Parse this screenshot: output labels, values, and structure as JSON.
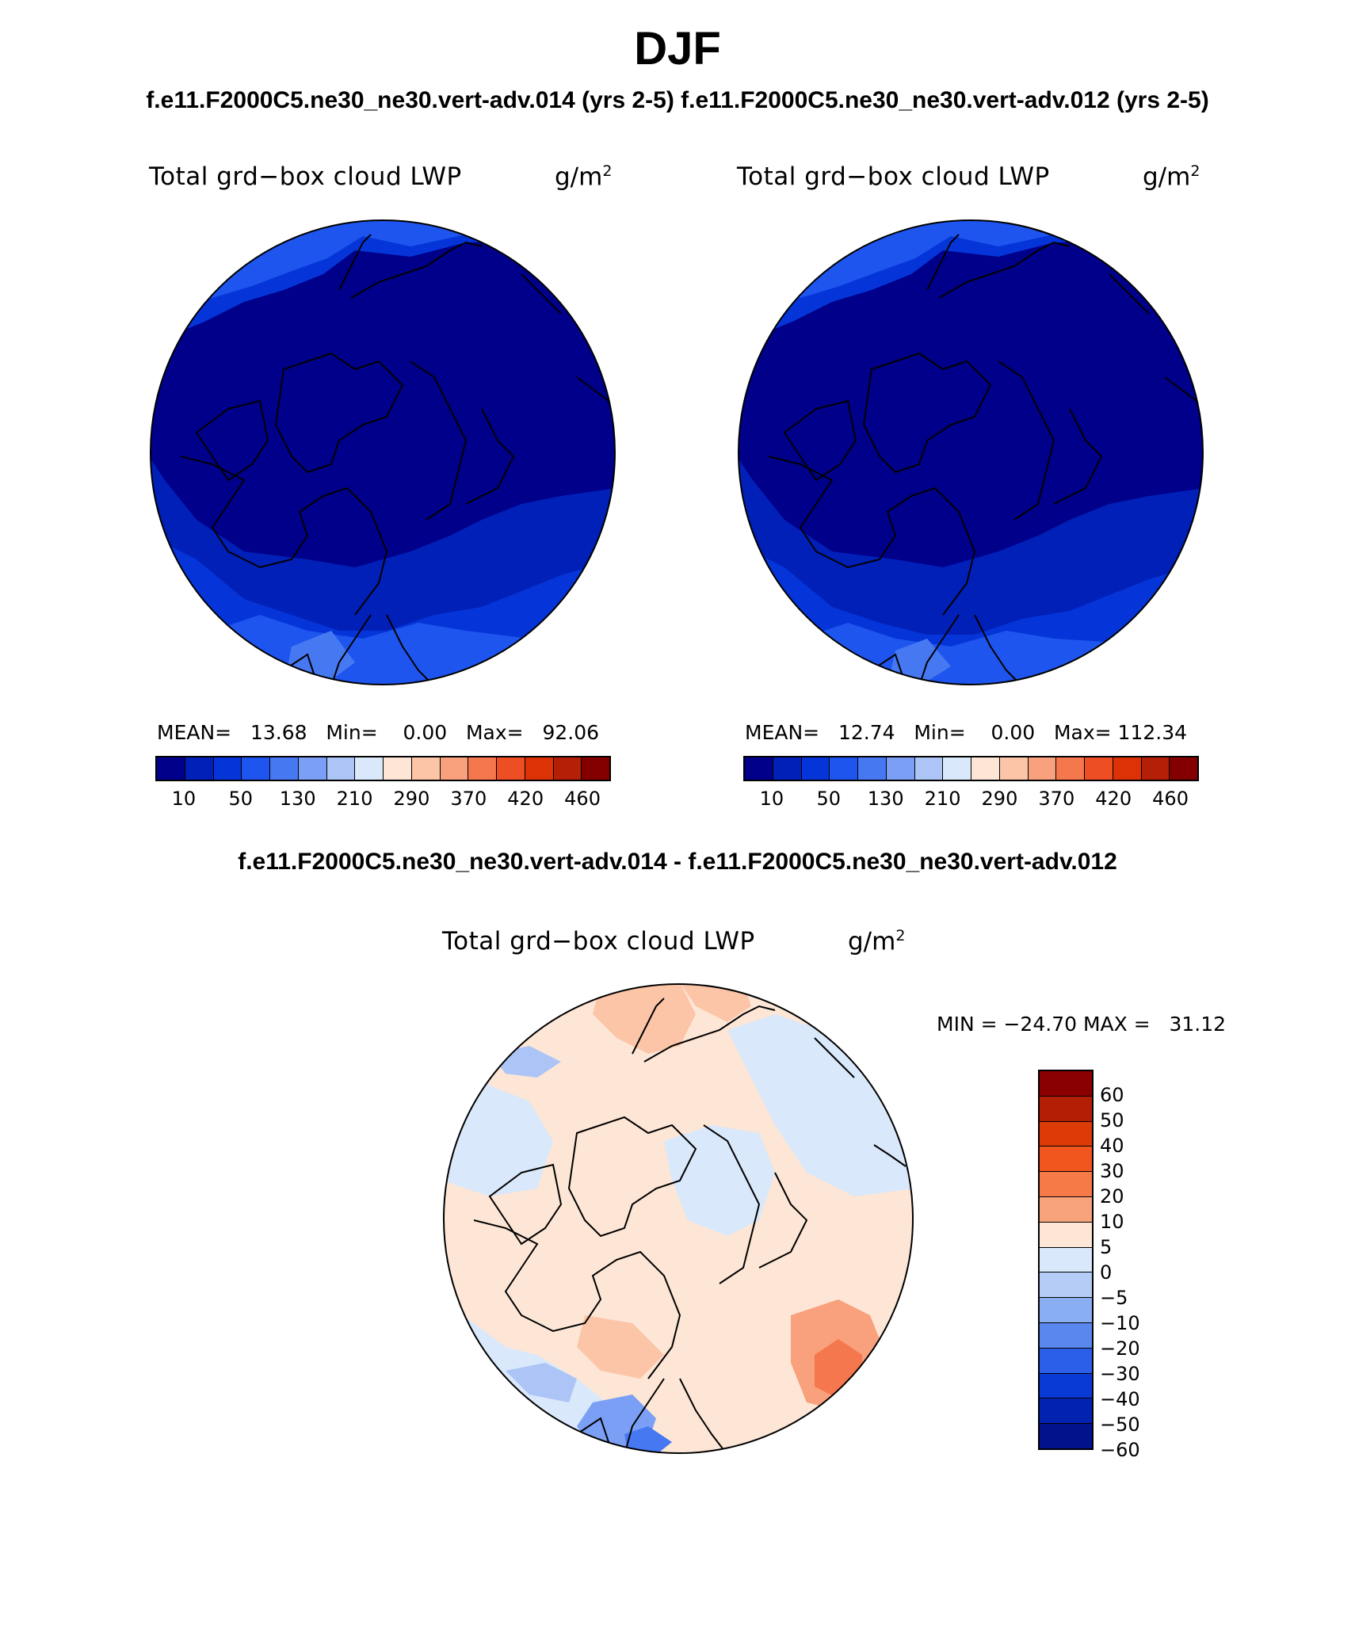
{
  "main_title": "DJF",
  "top_subtitle": "f.e11.F2000C5.ne30_ne30.vert-adv.014 (yrs 2-5) f.e11.F2000C5.ne30_ne30.vert-adv.012 (yrs 2-5)",
  "panel_left": {
    "title": "Total grd−box cloud LWP",
    "units_base": "g/m",
    "units_exp": "2",
    "stats": "MEAN=   13.68   Min=    0.00   Max=   92.06"
  },
  "panel_right": {
    "title": "Total grd−box cloud LWP",
    "units_base": "g/m",
    "units_exp": "2",
    "stats": "MEAN=   12.74   Min=    0.00   Max= 112.34"
  },
  "abs_colorbar": {
    "colors": [
      "#00008b",
      "#0020b8",
      "#0535d8",
      "#1e55ee",
      "#4678f2",
      "#7b9ff5",
      "#acc4f6",
      "#d9e8fa",
      "#fde6d6",
      "#fcc5a8",
      "#f9a07c",
      "#f4774d",
      "#ee4e24",
      "#dc3206",
      "#b42007",
      "#840000"
    ],
    "tick_labels": [
      "10",
      "50",
      "130",
      "210",
      "290",
      "370",
      "420",
      "460"
    ]
  },
  "diff_title": "f.e11.F2000C5.ne30_ne30.vert-adv.014 - f.e11.F2000C5.ne30_ne30.vert-adv.012",
  "panel_diff": {
    "title": "Total grd−box cloud LWP",
    "units_base": "g/m",
    "units_exp": "2",
    "stats": "MIN = −24.70 MAX =   31.12"
  },
  "diff_colorbar": {
    "colors_top_to_bottom": [
      "#8a0000",
      "#b31f05",
      "#dc3a06",
      "#f2561f",
      "#f57a47",
      "#f8a37c",
      "#fde6d6",
      "#d9e8fa",
      "#b5cdf6",
      "#8aaef2",
      "#5a87ee",
      "#2b5ee9",
      "#0a3ad6",
      "#0223b0",
      "#01128c"
    ],
    "tick_labels": [
      "60",
      "50",
      "40",
      "30",
      "20",
      "10",
      "5",
      "0",
      "−5",
      "−10",
      "−20",
      "−30",
      "−40",
      "−50",
      "−60"
    ]
  }
}
